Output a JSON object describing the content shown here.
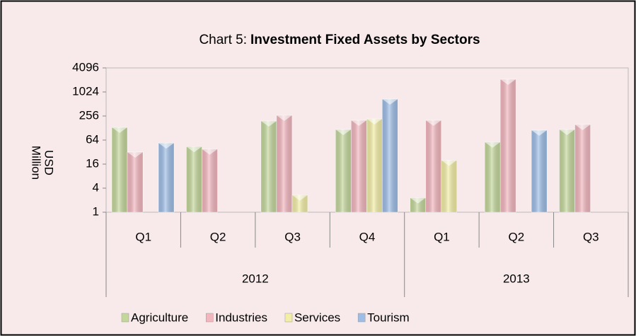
{
  "chart_data": {
    "type": "bar",
    "title": [
      "Chart 5:",
      "Investment Fixed Assets by Sectors"
    ],
    "ylabel": [
      "USD",
      "Million"
    ],
    "categories": [
      "Q1",
      "Q2",
      "Q3",
      "Q4",
      "Q1",
      "Q2",
      "Q3"
    ],
    "groups": [
      {
        "label": "2012",
        "span": 4
      },
      {
        "label": "2013",
        "span": 3
      }
    ],
    "series": [
      {
        "name": "Agriculture",
        "color": "#c4d79b",
        "values": [
          133,
          44,
          192,
          118,
          2.3,
          57,
          118
        ]
      },
      {
        "name": "Industries",
        "color": "#f2b6be",
        "values": [
          32,
          38,
          267,
          200,
          200,
          2130,
          157
        ]
      },
      {
        "name": "Services",
        "color": "#f3eea6",
        "values": [
          null,
          null,
          2.7,
          217,
          20,
          null,
          null
        ]
      },
      {
        "name": "Tourism",
        "color": "#9dbde6",
        "values": [
          54,
          null,
          null,
          680,
          null,
          113,
          null
        ]
      }
    ],
    "yscale": "log",
    "ylim": [
      1,
      4096
    ],
    "yticks": [
      1,
      4,
      16,
      64,
      256,
      1024,
      4096
    ],
    "grid": false,
    "legend": "bottom"
  }
}
